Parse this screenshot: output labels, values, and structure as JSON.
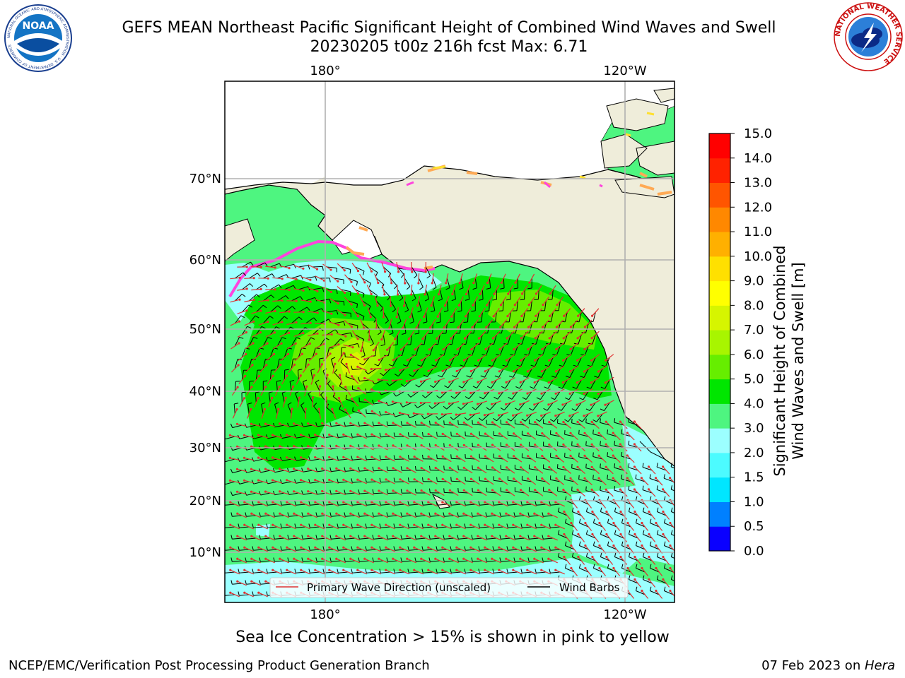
{
  "header": {
    "title_line_1": "GEFS MEAN Northeast Pacific Significant Height of Combined Wind Waves and Swell",
    "title_line_2": "20230205 t00z 216h fcst   Max: 6.71"
  },
  "logos": {
    "left_name": "NOAA",
    "left_ring_text": "NATIONAL OCEANIC AND ATMOSPHERIC ADMINISTRATION · U.S. DEPARTMENT OF COMMERCE",
    "right_ring_text": "NATIONAL WEATHER SERVICE"
  },
  "map": {
    "top_axis_labels": [
      "180°",
      "120°W"
    ],
    "bottom_axis_labels": [
      "180°",
      "120°W"
    ],
    "left_axis_labels": [
      "70°N",
      "60°N",
      "50°N",
      "40°N",
      "30°N",
      "20°N",
      "10°N"
    ],
    "legend": {
      "wave_label": "Primary Wave Direction (unscaled)",
      "barb_label": "Wind Barbs",
      "wave_color": "#e03030",
      "barb_color": "#000000"
    },
    "land_color": "#efedda",
    "ice_colors": [
      "#ff44dd",
      "#ffaa55",
      "#ffe030"
    ]
  },
  "colorbar": {
    "label_line_1": "Significant Height of Combined",
    "label_line_2": "Wind Waves and Swell [m]",
    "ticks": [
      "15.0",
      "14.0",
      "13.0",
      "12.0",
      "11.0",
      "10.0",
      "9.0",
      "8.0",
      "7.0",
      "6.0",
      "5.0",
      "4.0",
      "3.0",
      "2.0",
      "1.5",
      "1.0",
      "0.5",
      "0.0"
    ],
    "bin_colors_low_to_high": [
      "#0a00ff",
      "#0080ff",
      "#00e6ff",
      "#4cfbff",
      "#9cffff",
      "#4ef580",
      "#00e600",
      "#66ee00",
      "#a8f500",
      "#d6f500",
      "#ffff00",
      "#ffe000",
      "#ffb000",
      "#ff8800",
      "#ff5500",
      "#ff2200",
      "#ff0000"
    ]
  },
  "footer": {
    "ice_note": "Sea Ice Concentration > 15% is shown in pink to yellow",
    "credit": "NCEP/EMC/Verification Post Processing Product Generation Branch",
    "date": "07 Feb 2023 on ",
    "machine": "Hera"
  }
}
